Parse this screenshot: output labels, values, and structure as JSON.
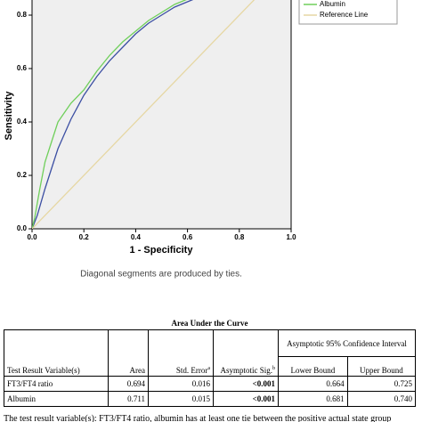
{
  "chart_data": {
    "type": "line",
    "xlabel": "1 - Specificity",
    "ylabel": "Sensitivity",
    "note": "Diagonal segments are produced by ties.",
    "xlim": [
      0,
      1
    ],
    "ylim": [
      0,
      1
    ],
    "xticks": [
      {
        "value": 0,
        "label": "0.0"
      },
      {
        "value": 0.2,
        "label": "0.2"
      },
      {
        "value": 0.4,
        "label": "0.4"
      },
      {
        "value": 0.6,
        "label": "0.6"
      },
      {
        "value": 0.8,
        "label": "0.8"
      },
      {
        "value": 1,
        "label": "1.0"
      }
    ],
    "yticks": [
      {
        "value": 0,
        "label": "0.0"
      },
      {
        "value": 0.2,
        "label": "0.2"
      },
      {
        "value": 0.4,
        "label": "0.4"
      },
      {
        "value": 0.6,
        "label": "0.6"
      },
      {
        "value": 0.8,
        "label": "0.8"
      }
    ],
    "series": [
      {
        "color": "#3c4fa3",
        "x": [
          0,
          0.02,
          0.05,
          0.08,
          0.1,
          0.15,
          0.2,
          0.25,
          0.3,
          0.35,
          0.4,
          0.45,
          0.5,
          0.55,
          0.6,
          0.65
        ],
        "values": [
          0,
          0.05,
          0.15,
          0.24,
          0.3,
          0.41,
          0.5,
          0.57,
          0.63,
          0.68,
          0.73,
          0.77,
          0.8,
          0.83,
          0.85,
          0.87
        ]
      },
      {
        "name": "Albumin",
        "color": "#6fcf5a",
        "x": [
          0,
          0.01,
          0.03,
          0.05,
          0.08,
          0.1,
          0.15,
          0.2,
          0.25,
          0.3,
          0.35,
          0.4,
          0.45,
          0.5,
          0.55,
          0.6,
          0.65
        ],
        "values": [
          0,
          0.04,
          0.15,
          0.25,
          0.34,
          0.4,
          0.47,
          0.52,
          0.59,
          0.65,
          0.7,
          0.74,
          0.78,
          0.81,
          0.84,
          0.86,
          0.88
        ]
      },
      {
        "name": "Reference Line",
        "color": "#e6d7a3",
        "x": [
          0,
          1
        ],
        "values": [
          0,
          1
        ]
      }
    ]
  },
  "table": {
    "title": "Area Under the Curve",
    "headers": [
      "Test Result Variable(s)",
      "Area",
      "Std. Error",
      "Asymptotic Sig.",
      "Asymptotic 95% Confidence Interval",
      "Lower Bound",
      "Upper Bound"
    ],
    "header_marks": [
      "a",
      "b"
    ],
    "rows": [
      [
        "FT3/FT4 ratio",
        "0.694",
        "0.016",
        "<0.001",
        "0.664",
        "0.725"
      ],
      [
        "Albumin",
        "0.711",
        "0.015",
        "<0.001",
        "0.681",
        "0.740"
      ]
    ],
    "footnote": "The test result variable(s): FT3/FT4 ratio, albumin has at least one tie between the positive actual state group"
  }
}
